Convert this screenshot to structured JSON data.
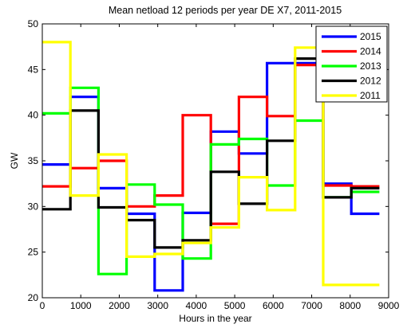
{
  "chart_data": {
    "type": "line",
    "title": "Mean netload 12 periods per year DE X7, 2011-2015",
    "xlabel": "Hours in the year",
    "ylabel": "GW",
    "xlim": [
      0,
      9000
    ],
    "ylim": [
      20,
      50
    ],
    "xticks": [
      0,
      1000,
      2000,
      3000,
      4000,
      5000,
      6000,
      7000,
      8000,
      9000
    ],
    "yticks": [
      20,
      25,
      30,
      35,
      40,
      45,
      50
    ],
    "grid": false,
    "legend_position": "top-right",
    "step_edges": [
      0,
      730,
      1460,
      2190,
      2920,
      3650,
      4380,
      5110,
      5840,
      6570,
      7300,
      8030,
      8760
    ],
    "series": [
      {
        "name": "2015",
        "color": "#0000ff",
        "values": [
          34.6,
          42.0,
          32.0,
          29.2,
          20.8,
          29.3,
          38.2,
          35.8,
          45.7,
          45.7,
          32.5,
          29.2
        ]
      },
      {
        "name": "2014",
        "color": "#ff0000",
        "values": [
          32.2,
          34.2,
          35.0,
          30.0,
          31.2,
          40.0,
          28.1,
          42.0,
          39.9,
          45.5,
          32.3,
          32.2
        ]
      },
      {
        "name": "2013",
        "color": "#00ff00",
        "values": [
          40.2,
          43.0,
          22.6,
          32.4,
          30.2,
          24.3,
          36.8,
          37.4,
          32.3,
          39.4,
          31.0,
          31.6
        ]
      },
      {
        "name": "2012",
        "color": "#000000",
        "values": [
          29.7,
          40.5,
          29.9,
          28.5,
          25.5,
          26.3,
          33.8,
          30.3,
          37.2,
          46.2,
          31.0,
          32.0
        ]
      },
      {
        "name": "2011",
        "color": "#ffff00",
        "values": [
          48.0,
          31.2,
          35.7,
          24.5,
          24.8,
          26.0,
          27.7,
          33.2,
          29.6,
          47.4,
          21.4,
          21.4
        ]
      }
    ]
  }
}
